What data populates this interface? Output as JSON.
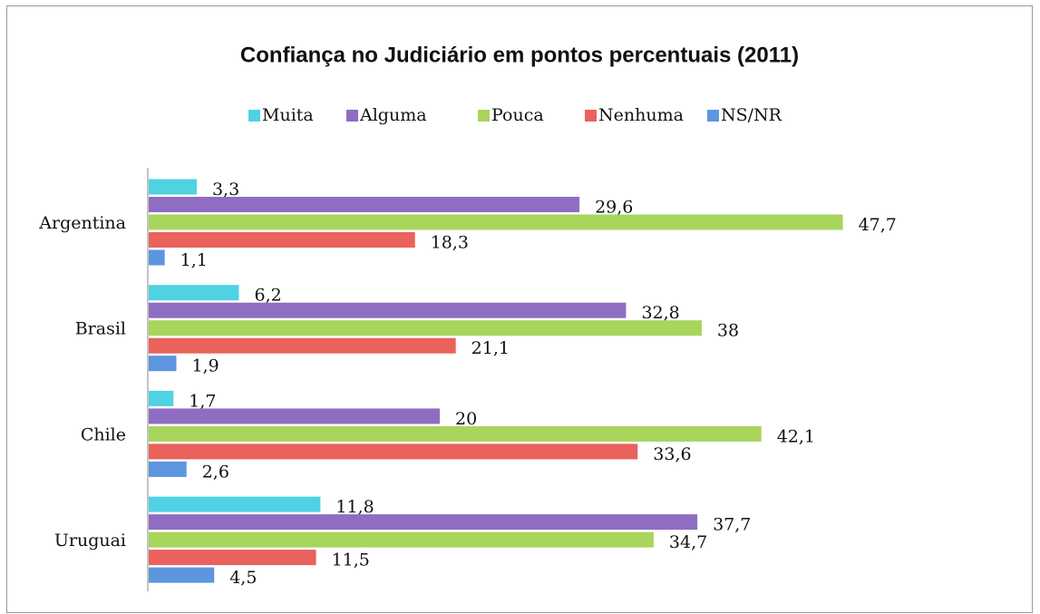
{
  "chart_data": {
    "type": "hbar",
    "title": "Confiança no Judiciário em pontos percentuais (2011)",
    "categories": [
      "Argentina",
      "Brasil",
      "Chile",
      "Uruguai"
    ],
    "series": [
      {
        "name": "Muita",
        "color": "#4fd2e2",
        "values": [
          3.3,
          6.2,
          1.7,
          11.8
        ],
        "value_labels": [
          "3,3",
          "6,2",
          "1,7",
          "11,8"
        ]
      },
      {
        "name": "Alguma",
        "color": "#8f6dc2",
        "values": [
          29.6,
          32.8,
          20,
          37.7
        ],
        "value_labels": [
          "29,6",
          "32,8",
          "20",
          "37,7"
        ]
      },
      {
        "name": "Pouca",
        "color": "#a8d55c",
        "values": [
          47.7,
          38,
          42.1,
          34.7
        ],
        "value_labels": [
          "47,7",
          "38",
          "42,1",
          "34,7"
        ]
      },
      {
        "name": "Nenhuma",
        "color": "#e9625c",
        "values": [
          18.3,
          21.1,
          33.6,
          11.5
        ],
        "value_labels": [
          "18,3",
          "21,1",
          "33,6",
          "11,5"
        ]
      },
      {
        "name": "NS/NR",
        "color": "#5d96de",
        "values": [
          1.1,
          1.9,
          2.6,
          4.5
        ],
        "value_labels": [
          "1,1",
          "1,9",
          "2,6",
          "4,5"
        ]
      }
    ],
    "legend": "top"
  }
}
